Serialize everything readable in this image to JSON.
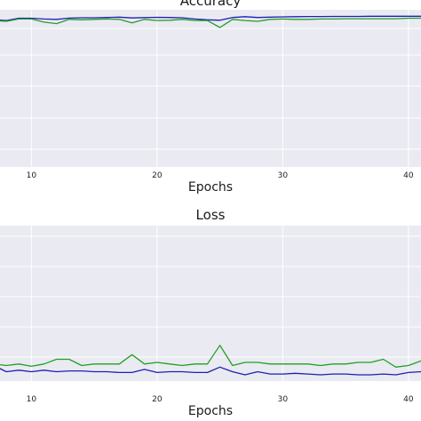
{
  "chart_data": [
    {
      "type": "line",
      "title": "Accuracy",
      "xlabel": "Epochs",
      "ylabel": "",
      "grid": true,
      "xlim": [
        7.5,
        41
      ],
      "ylim": [
        0,
        1.02
      ],
      "xticks": [
        10,
        20,
        30,
        40
      ],
      "x": [
        7,
        8,
        9,
        10,
        11,
        12,
        13,
        14,
        15,
        16,
        17,
        18,
        19,
        20,
        21,
        22,
        23,
        24,
        25,
        26,
        27,
        28,
        29,
        30,
        31,
        32,
        33,
        34,
        35,
        36,
        37,
        38,
        39,
        40,
        41
      ],
      "series": [
        {
          "color": "#1f1fb4",
          "values": [
            0.955,
            0.95,
            0.965,
            0.965,
            0.96,
            0.958,
            0.966,
            0.968,
            0.968,
            0.97,
            0.972,
            0.967,
            0.969,
            0.971,
            0.97,
            0.968,
            0.96,
            0.955,
            0.952,
            0.97,
            0.975,
            0.97,
            0.972,
            0.974,
            0.975,
            0.976,
            0.976,
            0.977,
            0.977,
            0.977,
            0.978,
            0.978,
            0.978,
            0.978,
            0.978
          ]
        },
        {
          "color": "#22a022",
          "values": [
            0.95,
            0.945,
            0.96,
            0.96,
            0.94,
            0.93,
            0.958,
            0.955,
            0.958,
            0.96,
            0.958,
            0.935,
            0.958,
            0.95,
            0.952,
            0.958,
            0.95,
            0.95,
            0.905,
            0.958,
            0.95,
            0.945,
            0.958,
            0.96,
            0.958,
            0.958,
            0.96,
            0.96,
            0.962,
            0.962,
            0.962,
            0.962,
            0.962,
            0.965,
            0.965
          ]
        }
      ]
    },
    {
      "type": "line",
      "title": "Loss",
      "xlabel": "Epochs",
      "ylabel": "",
      "grid": true,
      "xlim": [
        7.5,
        41
      ],
      "ylim": [
        0,
        1.0
      ],
      "xticks": [
        10,
        20,
        30,
        40
      ],
      "x": [
        7,
        8,
        9,
        10,
        11,
        12,
        13,
        14,
        15,
        16,
        17,
        18,
        19,
        20,
        21,
        22,
        23,
        24,
        25,
        26,
        27,
        28,
        29,
        30,
        31,
        32,
        33,
        34,
        35,
        36,
        37,
        38,
        39,
        40,
        41
      ],
      "series": [
        {
          "color": "#1f1fb4",
          "values": [
            0.1,
            0.06,
            0.07,
            0.06,
            0.07,
            0.06,
            0.065,
            0.065,
            0.06,
            0.06,
            0.055,
            0.055,
            0.075,
            0.055,
            0.06,
            0.06,
            0.055,
            0.055,
            0.09,
            0.06,
            0.04,
            0.06,
            0.045,
            0.045,
            0.05,
            0.045,
            0.04,
            0.045,
            0.045,
            0.04,
            0.04,
            0.045,
            0.04,
            0.055,
            0.06
          ]
        },
        {
          "color": "#22a022",
          "values": [
            0.11,
            0.1,
            0.11,
            0.095,
            0.11,
            0.14,
            0.14,
            0.1,
            0.11,
            0.11,
            0.11,
            0.17,
            0.11,
            0.12,
            0.11,
            0.1,
            0.11,
            0.11,
            0.23,
            0.1,
            0.12,
            0.12,
            0.11,
            0.11,
            0.11,
            0.11,
            0.1,
            0.11,
            0.11,
            0.12,
            0.12,
            0.14,
            0.09,
            0.1,
            0.13
          ]
        }
      ]
    }
  ]
}
